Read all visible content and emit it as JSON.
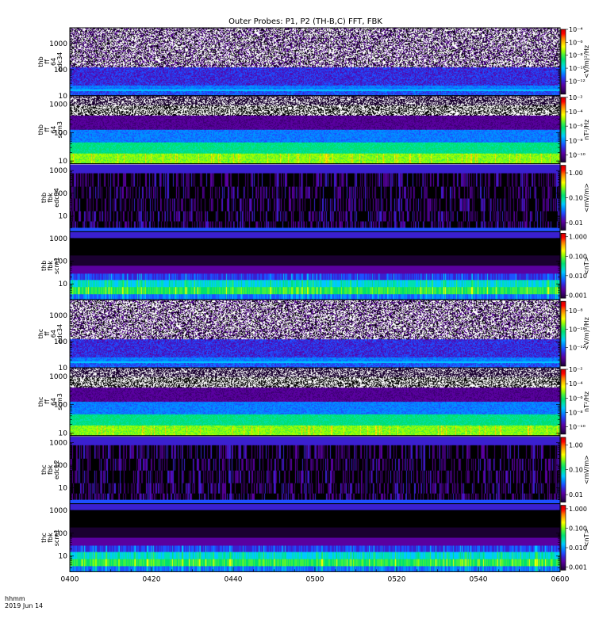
{
  "title": "Outer Probes: P1, P2 (TH-B,C) FFT, FBK",
  "time_axis": {
    "ticks": [
      "0400",
      "0420",
      "0440",
      "0500",
      "0520",
      "0540",
      "0600"
    ],
    "corner_label": "hhmm",
    "date": "2019 Jun 14"
  },
  "colors": {
    "background": "#ffffff",
    "palette": [
      "#000000",
      "#1a0030",
      "#3c0070",
      "#5a00a0",
      "#3a20d0",
      "#1d50ff",
      "#0090ff",
      "#00c8ff",
      "#00e0b0",
      "#00e070",
      "#40f040",
      "#a0ff00",
      "#ffff00",
      "#ffc000",
      "#ff7000",
      "#ff0000",
      "#d00000"
    ]
  },
  "chart_data": [
    {
      "type": "heatmap",
      "name": "thb_ff_64_edc34",
      "ylabel": [
        "thb",
        "ff",
        "64",
        "edc34"
      ],
      "yscale": "log",
      "yrange": [
        10,
        4000
      ],
      "y_ticks": [
        "10",
        "100",
        "1000"
      ],
      "colorbar": {
        "label": "<V/m)²/Hz",
        "ticks": [
          "10⁻⁴",
          "10⁻⁶",
          "10⁻⁸",
          "10⁻¹⁰",
          "10⁻¹²"
        ],
        "range": [
          1e-14,
          0.0001
        ],
        "log": true
      },
      "pattern": "noisy_upper"
    },
    {
      "type": "heatmap",
      "name": "thb_ff_64_scm3",
      "ylabel": [
        "thb",
        "ff",
        "64",
        "scm3"
      ],
      "yscale": "log",
      "yrange": [
        8,
        2000
      ],
      "y_ticks": [
        "10",
        "100",
        "1000"
      ],
      "colorbar": {
        "label": "nT²/Hz",
        "ticks": [
          "10⁻²",
          "10⁻⁴",
          "10⁻⁶",
          "10⁻⁸",
          "10⁻¹⁰"
        ],
        "range": [
          1e-11,
          0.01
        ],
        "log": true
      },
      "pattern": "scm_spectrum"
    },
    {
      "type": "heatmap",
      "name": "thb_fbk_edc34",
      "ylabel": [
        "thb",
        "fbk",
        "edc34"
      ],
      "yscale": "log",
      "yrange": [
        2,
        2000
      ],
      "y_ticks": [
        "10",
        "100",
        "1000"
      ],
      "colorbar": {
        "label": "<mV/m>",
        "ticks": [
          "1.00",
          "0.10",
          "0.01"
        ],
        "range": [
          0.005,
          2
        ],
        "log": true
      },
      "pattern": "fbk_e"
    },
    {
      "type": "heatmap",
      "name": "thb_fbk_scm1",
      "ylabel": [
        "thb",
        "fbk",
        "scm1"
      ],
      "yscale": "log",
      "yrange": [
        2,
        2000
      ],
      "y_ticks": [
        "10",
        "100",
        "1000"
      ],
      "colorbar": {
        "label": "<nT>",
        "ticks": [
          "1.000",
          "0.100",
          "0.010",
          "0.001"
        ],
        "range": [
          0.0007,
          1.5
        ],
        "log": true
      },
      "pattern": "fbk_b"
    },
    {
      "type": "heatmap",
      "name": "thc_ff_64_edc34",
      "ylabel": [
        "thc",
        "ff",
        "64",
        "edc34"
      ],
      "yscale": "log",
      "yrange": [
        10,
        4000
      ],
      "y_ticks": [
        "10",
        "100",
        "1000"
      ],
      "colorbar": {
        "label": "<V/m)²/Hz",
        "ticks": [
          "10⁻⁸",
          "10⁻¹⁰",
          "10⁻¹²"
        ],
        "range": [
          1e-14,
          1e-07
        ],
        "log": true
      },
      "pattern": "noisy_upper"
    },
    {
      "type": "heatmap",
      "name": "thc_ff_64_scm3",
      "ylabel": [
        "thc",
        "ff",
        "64",
        "scm3"
      ],
      "yscale": "log",
      "yrange": [
        8,
        2000
      ],
      "y_ticks": [
        "10",
        "100",
        "1000"
      ],
      "colorbar": {
        "label": "nT²/Hz",
        "ticks": [
          "10⁻²",
          "10⁻⁴",
          "10⁻⁶",
          "10⁻⁸",
          "10⁻¹⁰"
        ],
        "range": [
          1e-11,
          0.01
        ],
        "log": true
      },
      "pattern": "scm_spectrum"
    },
    {
      "type": "heatmap",
      "name": "thc_fbk_edc12",
      "ylabel": [
        "thc",
        "fbk",
        "edc12"
      ],
      "yscale": "log",
      "yrange": [
        2,
        2000
      ],
      "y_ticks": [
        "10",
        "100",
        "1000"
      ],
      "colorbar": {
        "label": "<mV/m>",
        "ticks": [
          "1.00",
          "0.10",
          "0.01"
        ],
        "range": [
          0.005,
          2
        ],
        "log": true
      },
      "pattern": "fbk_e"
    },
    {
      "type": "heatmap",
      "name": "thc_fbk_scm1",
      "ylabel": [
        "thc",
        "fbk",
        "scm1"
      ],
      "yscale": "log",
      "yrange": [
        2,
        2000
      ],
      "y_ticks": [
        "10",
        "100",
        "1000"
      ],
      "colorbar": {
        "label": "<nT>",
        "ticks": [
          "1.000",
          "0.100",
          "0.010",
          "0.001"
        ],
        "range": [
          0.0007,
          1.5
        ],
        "log": true
      },
      "pattern": "fbk_b"
    }
  ]
}
